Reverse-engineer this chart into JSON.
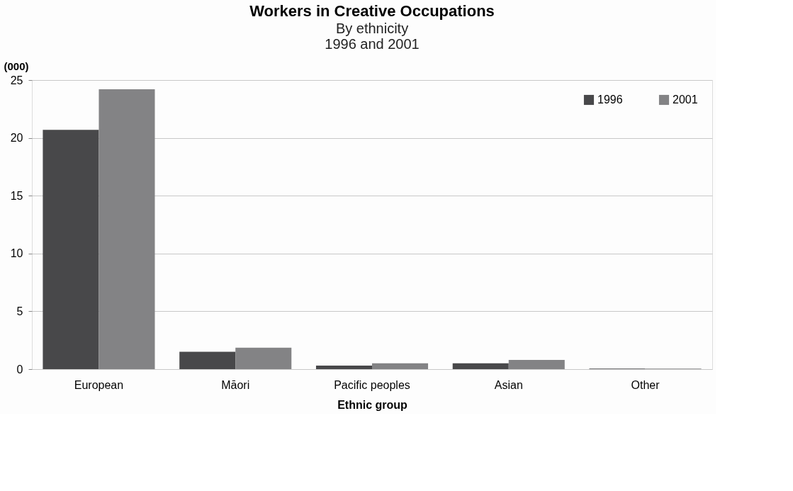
{
  "chart_data": {
    "type": "bar",
    "title": "Workers in Creative Occupations",
    "subtitle": "By ethnicity",
    "annotations": [
      "1996 and 2001"
    ],
    "xlabel": "Ethnic group",
    "ylabel": "(000)",
    "categories": [
      "European",
      "Māori",
      "Pacific peoples",
      "Asian",
      "Other"
    ],
    "series": [
      {
        "name": "1996",
        "color": "#48484a",
        "values": [
          20.7,
          1.5,
          0.3,
          0.5,
          0.05
        ]
      },
      {
        "name": "2001",
        "color": "#838385",
        "values": [
          24.2,
          1.85,
          0.5,
          0.8,
          0.05
        ]
      }
    ],
    "ylim": [
      0,
      25
    ],
    "yticks": [
      0,
      5,
      10,
      15,
      20,
      25
    ],
    "grid": "y",
    "legend": "top right"
  }
}
